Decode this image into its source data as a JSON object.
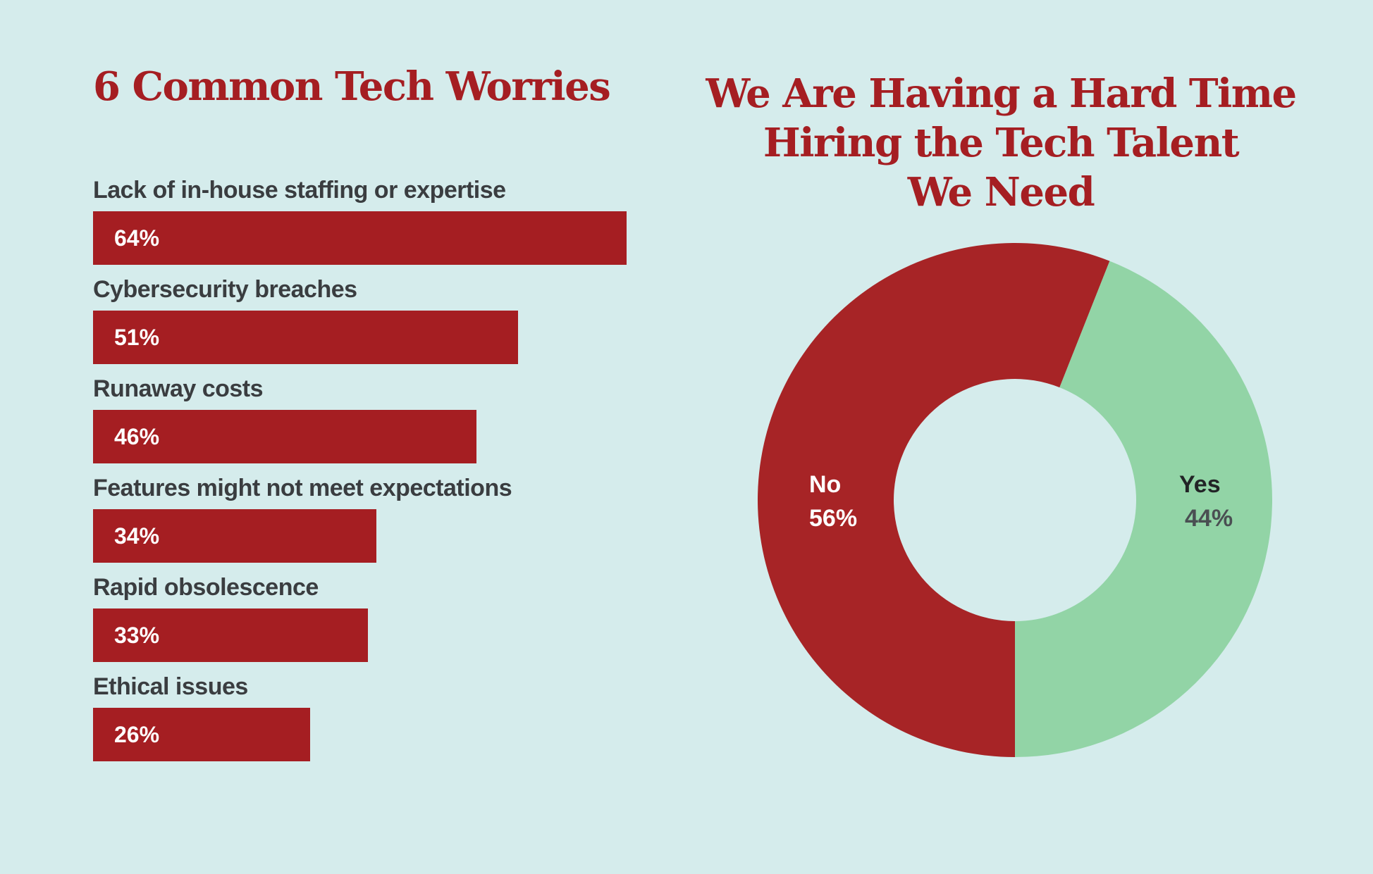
{
  "chart_data": [
    {
      "type": "bar",
      "orientation": "horizontal",
      "title": "6 Common Tech Worries",
      "categories": [
        "Lack of in-house staffing or expertise",
        "Cybersecurity breaches",
        "Runaway costs",
        "Features might not meet expectations",
        "Rapid obsolescence",
        "Ethical issues"
      ],
      "values": [
        64,
        51,
        46,
        34,
        33,
        26
      ],
      "value_labels": [
        "64%",
        "51%",
        "46%",
        "34%",
        "33%",
        "26%"
      ],
      "xlim": [
        0,
        100
      ],
      "xlabel": "",
      "ylabel": "",
      "grid": false,
      "color": "#a51e22"
    },
    {
      "type": "pie",
      "style": "donut",
      "title_lines": [
        "We Are Having a Hard Time",
        "Hiring the Tech Talent",
        "We Need"
      ],
      "slices": [
        {
          "name": "No",
          "value": 56,
          "label": "56%",
          "color": "#a72426"
        },
        {
          "name": "Yes",
          "value": 44,
          "label": "44%",
          "color": "#92d4a6"
        }
      ]
    }
  ]
}
